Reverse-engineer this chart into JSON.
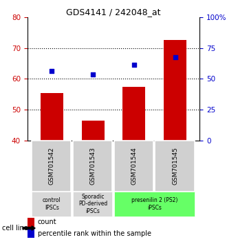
{
  "title": "GDS4141 / 242048_at",
  "categories": [
    "GSM701542",
    "GSM701543",
    "GSM701544",
    "GSM701545"
  ],
  "bar_values": [
    55.5,
    46.5,
    57.5,
    72.5
  ],
  "bar_bottom": 40,
  "bar_color": "#cc0000",
  "dot_values": [
    62.5,
    61.5,
    64.5,
    67.0
  ],
  "dot_color": "#0000cc",
  "ylim_left": [
    40,
    80
  ],
  "ylim_right": [
    0,
    100
  ],
  "yticks_left": [
    40,
    50,
    60,
    70,
    80
  ],
  "yticks_right": [
    0,
    25,
    50,
    75,
    100
  ],
  "ytick_labels_right": [
    "0",
    "25",
    "50",
    "75",
    "100%"
  ],
  "groups": [
    {
      "label": "control\nIPSCs",
      "start": 0,
      "end": 0,
      "color": "#d8d8d8"
    },
    {
      "label": "Sporadic\nPD-derived\niPSCs",
      "start": 1,
      "end": 1,
      "color": "#d8d8d8"
    },
    {
      "label": "presenilin 2 (PS2)\niPSCs",
      "start": 2,
      "end": 3,
      "color": "#66ff66"
    }
  ],
  "cell_line_label": "cell line",
  "legend_count_label": "count",
  "legend_percentile_label": "percentile rank within the sample",
  "dotted_yticks": [
    50,
    60,
    70
  ],
  "bar_width": 0.55
}
